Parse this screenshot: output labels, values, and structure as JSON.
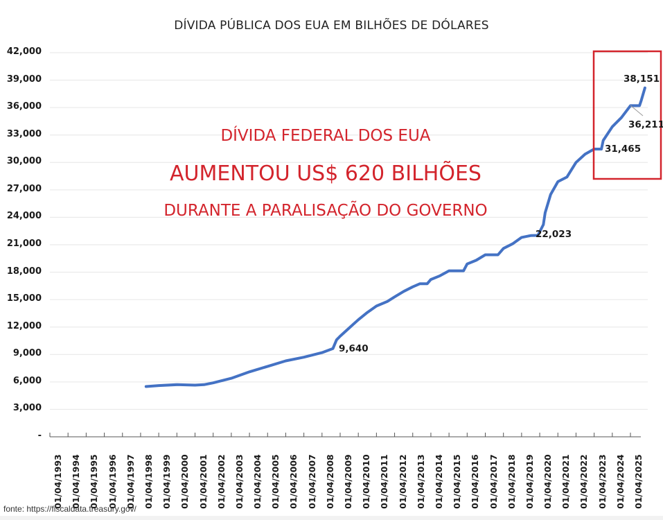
{
  "chart_data": {
    "type": "line",
    "title": "DÍVIDA PÚBLICA DOS EUA EM BILHÕES DE DÓLARES",
    "xlabel": "",
    "ylabel": "",
    "ylim": [
      0,
      42000
    ],
    "grid": true,
    "legend": "none",
    "y_ticks": [
      "42,000",
      "39,000",
      "36,000",
      "33,000",
      "30,000",
      "27,000",
      "24,000",
      "21,000",
      "18,000",
      "15,000",
      "12,000",
      "9,000",
      "6,000",
      "3,000",
      "-"
    ],
    "x_ticks": [
      "01/04/1993",
      "01/04/1994",
      "01/04/1995",
      "01/04/1996",
      "01/04/1997",
      "01/04/1998",
      "01/04/1999",
      "01/04/2000",
      "01/04/2001",
      "01/04/2002",
      "01/04/2003",
      "01/04/2004",
      "01/04/2005",
      "01/04/2006",
      "01/04/2007",
      "01/04/2008",
      "01/04/2009",
      "01/04/2010",
      "01/04/2011",
      "01/04/2012",
      "01/04/2013",
      "01/04/2014",
      "01/04/2015",
      "01/04/2016",
      "01/04/2017",
      "01/04/2018",
      "01/04/2019",
      "01/04/2020",
      "01/04/2021",
      "01/04/2022",
      "01/04/2023",
      "01/04/2024",
      "01/04/2025"
    ],
    "series": [
      {
        "name": "Dívida pública dos EUA (bilhões US$)",
        "color": "#4472c4",
        "x": [
          1998.3,
          1999.0,
          2000.0,
          2001.0,
          2001.5,
          2002.0,
          2003.0,
          2004.0,
          2005.0,
          2006.0,
          2007.0,
          2008.0,
          2008.6,
          2008.8,
          2009.0,
          2009.5,
          2010.0,
          2010.5,
          2011.0,
          2011.6,
          2012.0,
          2012.5,
          2013.0,
          2013.4,
          2013.8,
          2014.0,
          2014.5,
          2015.0,
          2015.8,
          2016.0,
          2016.5,
          2017.0,
          2017.7,
          2018.0,
          2018.5,
          2019.0,
          2019.5,
          2019.9,
          2020.2,
          2020.3,
          2020.6,
          2021.0,
          2021.5,
          2022.0,
          2022.5,
          2023.0,
          2023.4,
          2023.5,
          2024.0,
          2024.5,
          2025.0,
          2025.5,
          2025.6,
          2025.8
        ],
        "values": [
          5500,
          5600,
          5700,
          5650,
          5700,
          5900,
          6400,
          7100,
          7700,
          8300,
          8700,
          9200,
          9640,
          10600,
          11000,
          11900,
          12800,
          13600,
          14300,
          14800,
          15300,
          15900,
          16400,
          16738,
          16738,
          17200,
          17600,
          18150,
          18150,
          18900,
          19300,
          19900,
          19900,
          20600,
          21100,
          21800,
          22000,
          22023,
          23200,
          24500,
          26500,
          27900,
          28400,
          30000,
          30900,
          31465,
          31465,
          32400,
          33900,
          34900,
          36211,
          36211,
          36800,
          38151
        ]
      }
    ],
    "annotations": [
      {
        "label": "9,640",
        "x": 2008.6,
        "y": 9640
      },
      {
        "label": "22,023",
        "x": 2019.9,
        "y": 22023
      },
      {
        "label": "31,465",
        "x": 2023.4,
        "y": 31465
      },
      {
        "label": "36,211",
        "x": 2025.5,
        "y": 36211
      },
      {
        "label": "38,151",
        "x": 2025.8,
        "y": 38151
      }
    ],
    "highlight_box": {
      "from": "2023",
      "to": "2025",
      "color": "#d3242c"
    }
  },
  "title": "DÍVIDA PÚBLICA DOS EUA EM BILHÕES DE DÓLARES",
  "headline": {
    "line1": "DÍVIDA FEDERAL DOS EUA",
    "line2": "AUMENTOU US$ 620 BILHÕES",
    "line3": "DURANTE A PARALISAÇÃO DO GOVERNO",
    "color": "#d3242c"
  },
  "labels": {
    "ann_9640": "9,640",
    "ann_22023": "22,023",
    "ann_31465": "31,465",
    "ann_36211": "36,211",
    "ann_38151": "38,151"
  },
  "source": "fonte: https://fiscaldata.treasury.gov/"
}
